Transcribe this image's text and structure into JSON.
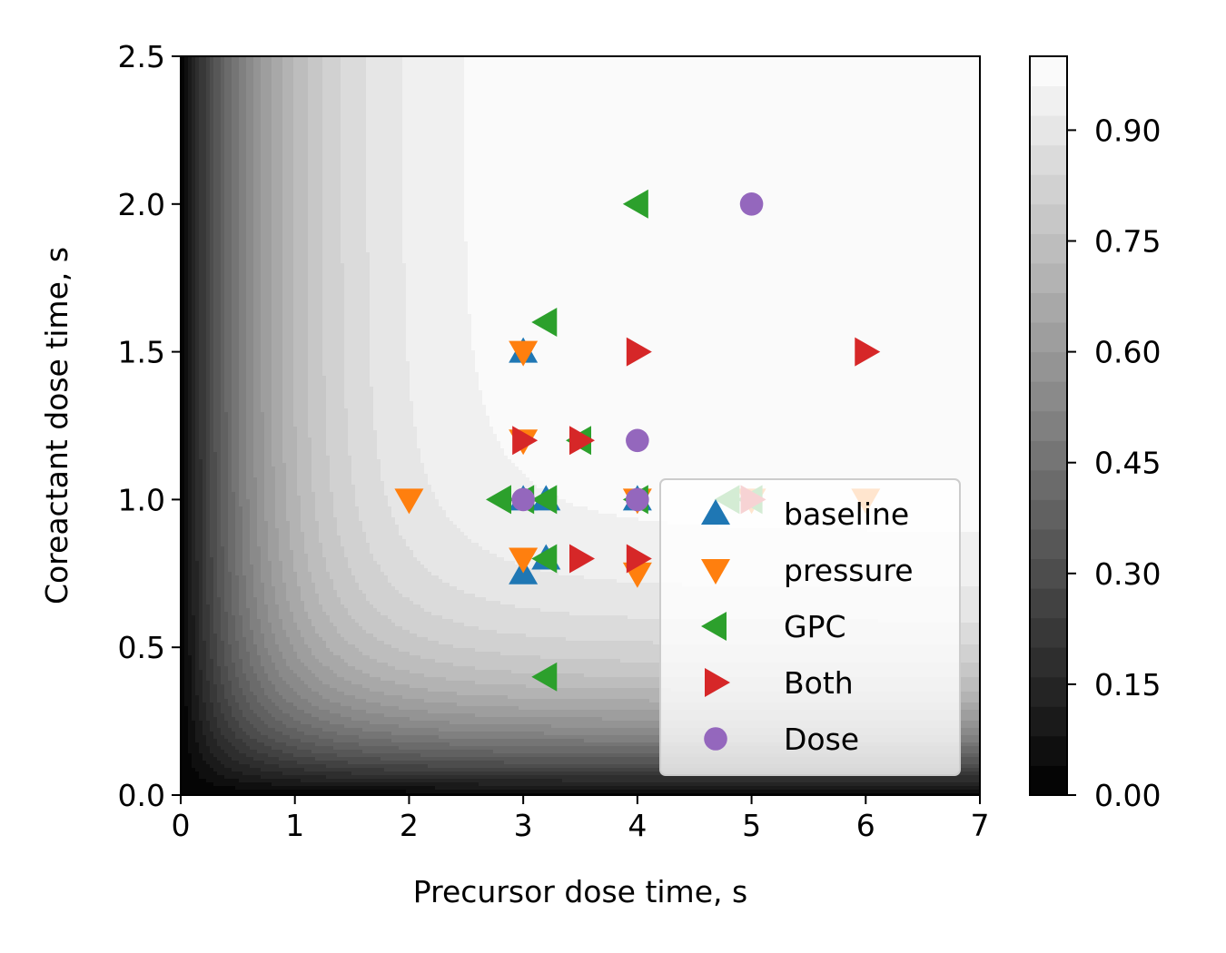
{
  "chart_data": {
    "type": "scatter",
    "background": "filled-contour",
    "xlabel": "Precursor dose time, s",
    "ylabel": "Coreactant dose time, s",
    "xlim": [
      0,
      7
    ],
    "ylim": [
      0,
      2.5
    ],
    "x_ticks": [
      "0",
      "1",
      "2",
      "3",
      "4",
      "5",
      "6",
      "7"
    ],
    "y_ticks": [
      "0.0",
      "0.5",
      "1.0",
      "1.5",
      "2.0",
      "2.5"
    ],
    "contour": {
      "levels": 25,
      "vmin": 0.0,
      "vmax": 1.0,
      "cmap": "gray",
      "k_precursor": 1.3,
      "k_coreactant": 3.6
    },
    "colorbar": {
      "range": [
        0.0,
        1.0
      ],
      "ticks": [
        "0.00",
        "0.15",
        "0.30",
        "0.45",
        "0.60",
        "0.75",
        "0.90"
      ]
    },
    "legend_position": "lower-right",
    "series": [
      {
        "name": "baseline",
        "marker": "triangle-up",
        "color": "#1f77b4",
        "points": [
          [
            3.0,
            1.5
          ],
          [
            3.0,
            0.75
          ],
          [
            3.0,
            1.0
          ],
          [
            3.2,
            1.0
          ],
          [
            3.2,
            0.8
          ],
          [
            4.0,
            1.0
          ]
        ]
      },
      {
        "name": "pressure",
        "marker": "triangle-down",
        "color": "#ff7f0e",
        "points": [
          [
            2.0,
            1.0
          ],
          [
            3.0,
            1.5
          ],
          [
            3.0,
            1.2
          ],
          [
            3.0,
            0.8
          ],
          [
            4.0,
            1.0
          ],
          [
            4.0,
            0.75
          ],
          [
            5.0,
            1.0
          ],
          [
            6.0,
            1.0
          ]
        ]
      },
      {
        "name": "GPC",
        "marker": "triangle-left",
        "color": "#2ca02c",
        "points": [
          [
            2.8,
            1.0
          ],
          [
            3.0,
            1.0
          ],
          [
            3.2,
            1.6
          ],
          [
            3.2,
            1.0
          ],
          [
            3.2,
            0.8
          ],
          [
            3.2,
            0.4
          ],
          [
            3.5,
            1.2
          ],
          [
            4.0,
            2.0
          ],
          [
            4.0,
            1.0
          ],
          [
            4.8,
            1.0
          ],
          [
            5.0,
            1.0
          ]
        ]
      },
      {
        "name": "Both",
        "marker": "triangle-right",
        "color": "#d62728",
        "points": [
          [
            3.0,
            1.2
          ],
          [
            3.5,
            1.2
          ],
          [
            3.5,
            0.8
          ],
          [
            4.0,
            1.5
          ],
          [
            4.0,
            0.8
          ],
          [
            5.0,
            1.0
          ],
          [
            6.0,
            1.5
          ]
        ]
      },
      {
        "name": "Dose",
        "marker": "circle",
        "color": "#9467bd",
        "points": [
          [
            3.0,
            1.0
          ],
          [
            4.0,
            1.2
          ],
          [
            4.0,
            1.0
          ],
          [
            5.0,
            2.0
          ]
        ]
      }
    ]
  }
}
